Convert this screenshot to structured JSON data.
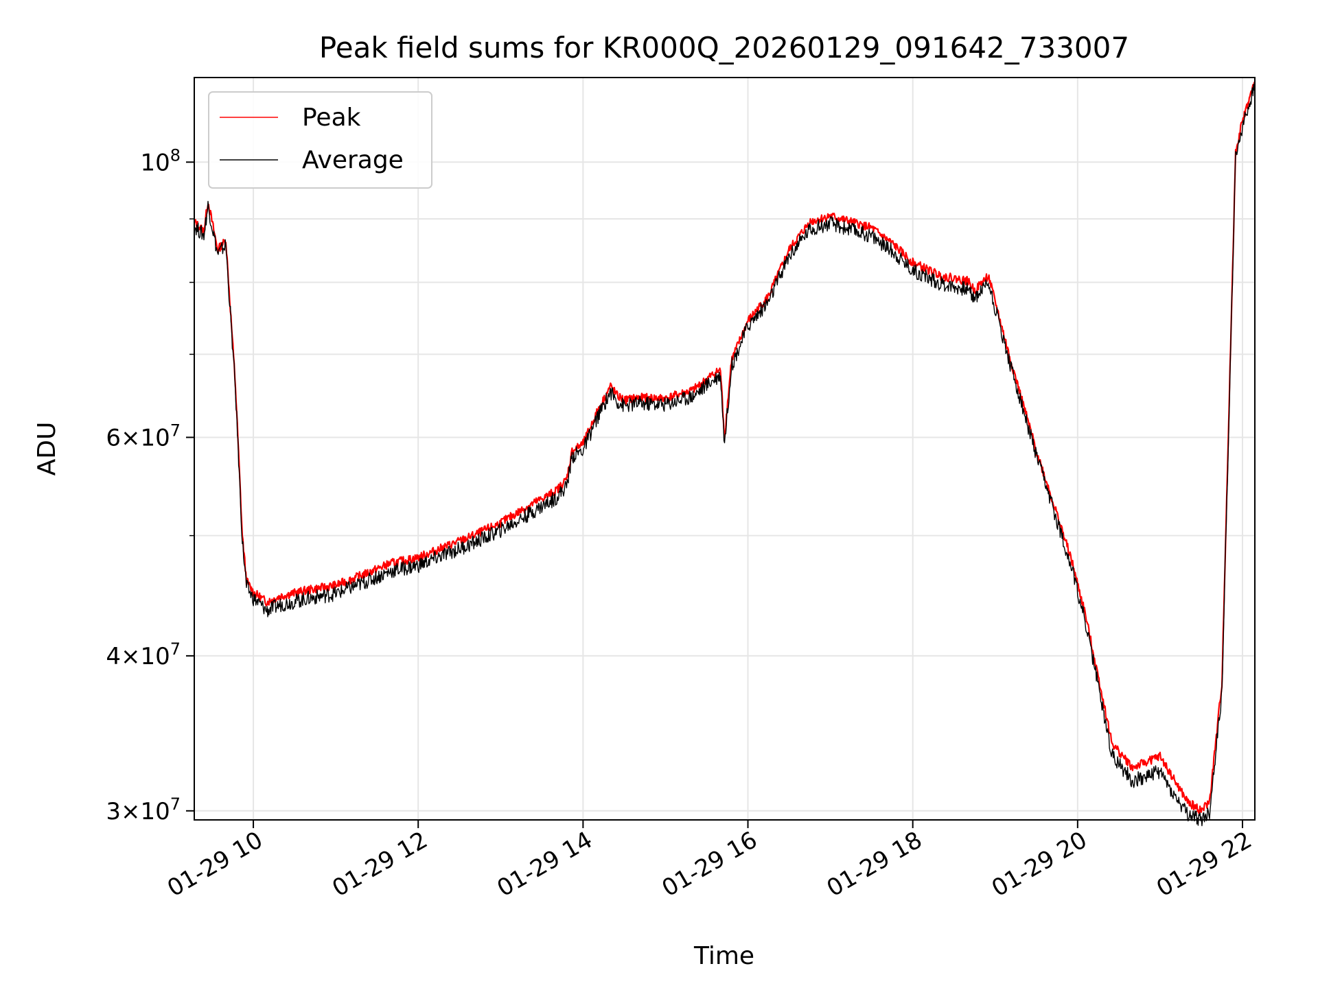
{
  "chart_data": {
    "type": "line",
    "title": "Peak field sums for KR000Q_20260129_091642_733007",
    "xlabel": "Time",
    "ylabel": "ADU",
    "yscale": "log",
    "grid": true,
    "legend_placement": "top-left",
    "xlim": [
      "2026-01-29T09:17",
      "2026-01-29T22:09"
    ],
    "ylim": [
      29500000,
      117000000
    ],
    "x_ticks": [
      {
        "value": "2026-01-29T10:00",
        "label": "01-29 10"
      },
      {
        "value": "2026-01-29T12:00",
        "label": "01-29 12"
      },
      {
        "value": "2026-01-29T14:00",
        "label": "01-29 14"
      },
      {
        "value": "2026-01-29T16:00",
        "label": "01-29 16"
      },
      {
        "value": "2026-01-29T18:00",
        "label": "01-29 18"
      },
      {
        "value": "2026-01-29T20:00",
        "label": "01-29 20"
      },
      {
        "value": "2026-01-29T22:00",
        "label": "01-29 22"
      }
    ],
    "y_ticks": [
      {
        "value": 30000000,
        "mantissa": "3",
        "exponent": "7"
      },
      {
        "value": 40000000,
        "mantissa": "4",
        "exponent": "7"
      },
      {
        "value": 60000000,
        "mantissa": "6",
        "exponent": "7"
      },
      {
        "value": 100000000,
        "mantissa": "",
        "exponent": "8"
      }
    ],
    "y_minor_ticks": [
      50000000,
      70000000,
      80000000,
      90000000
    ],
    "series": [
      {
        "name": "Peak",
        "color": "#ff0000",
        "x": [
          "09:17",
          "09:24",
          "09:27",
          "09:34",
          "09:40",
          "09:47",
          "09:52",
          "09:55",
          "10:00",
          "10:10",
          "10:20",
          "10:40",
          "11:00",
          "11:20",
          "11:40",
          "12:00",
          "12:20",
          "12:40",
          "13:00",
          "13:20",
          "13:40",
          "13:48",
          "13:52",
          "14:00",
          "14:10",
          "14:20",
          "14:25",
          "14:30",
          "14:40",
          "15:00",
          "15:20",
          "15:35",
          "15:40",
          "15:43",
          "15:48",
          "16:00",
          "16:15",
          "16:30",
          "16:45",
          "17:00",
          "17:15",
          "17:30",
          "17:45",
          "18:00",
          "18:20",
          "18:40",
          "18:45",
          "18:55",
          "19:10",
          "19:30",
          "19:45",
          "19:55",
          "20:05",
          "20:15",
          "20:25",
          "20:40",
          "21:00",
          "21:10",
          "21:20",
          "21:30",
          "21:36",
          "21:45",
          "21:50",
          "21:55",
          "22:00",
          "22:09"
        ],
        "y": [
          89500000,
          88000000,
          93000000,
          85000000,
          86500000,
          66000000,
          50000000,
          46000000,
          45000000,
          44200000,
          44700000,
          45200000,
          45600000,
          46500000,
          47500000,
          48000000,
          49000000,
          50000000,
          51200000,
          52800000,
          54300000,
          55500000,
          58500000,
          59300000,
          62800000,
          66000000,
          64800000,
          64300000,
          64600000,
          64500000,
          65500000,
          67500000,
          68000000,
          60000000,
          69200000,
          74500000,
          78000000,
          85000000,
          89500000,
          90500000,
          89500000,
          88500000,
          86000000,
          83000000,
          81000000,
          80200000,
          78800000,
          81000000,
          70000000,
          58500000,
          52000000,
          48000000,
          43500000,
          38500000,
          34000000,
          32500000,
          33200000,
          31800000,
          30500000,
          30000000,
          30500000,
          38000000,
          62000000,
          102000000,
          108000000,
          116000000
        ]
      },
      {
        "name": "Average",
        "color": "#000000",
        "x": [
          "09:17",
          "09:24",
          "09:27",
          "09:34",
          "09:40",
          "09:47",
          "09:52",
          "09:55",
          "10:00",
          "10:10",
          "10:20",
          "10:40",
          "11:00",
          "11:20",
          "11:40",
          "12:00",
          "12:20",
          "12:40",
          "13:00",
          "13:20",
          "13:40",
          "13:48",
          "13:52",
          "14:00",
          "14:10",
          "14:20",
          "14:25",
          "14:30",
          "14:40",
          "15:00",
          "15:20",
          "15:35",
          "15:40",
          "15:43",
          "15:48",
          "16:00",
          "16:15",
          "16:30",
          "16:45",
          "17:00",
          "17:15",
          "17:30",
          "17:45",
          "18:00",
          "18:20",
          "18:40",
          "18:45",
          "18:55",
          "19:10",
          "19:30",
          "19:45",
          "19:55",
          "20:05",
          "20:15",
          "20:25",
          "20:40",
          "21:00",
          "21:10",
          "21:20",
          "21:30",
          "21:36",
          "21:45",
          "21:50",
          "21:55",
          "22:00",
          "22:09"
        ],
        "y": [
          88800000,
          87300000,
          92300000,
          84300000,
          85800000,
          65400000,
          49500000,
          45500000,
          44500000,
          43500000,
          44000000,
          44500000,
          44900000,
          45800000,
          46800000,
          47300000,
          48300000,
          49300000,
          50500000,
          52000000,
          53600000,
          54800000,
          57900000,
          58600000,
          62100000,
          65300000,
          64100000,
          63600000,
          63900000,
          63800000,
          64800000,
          66800000,
          67400000,
          59300000,
          68500000,
          73800000,
          77200000,
          84000000,
          88300000,
          89200000,
          88200000,
          87200000,
          84800000,
          81800000,
          79800000,
          79000000,
          77700000,
          80100000,
          69300000,
          57900000,
          51400000,
          47400000,
          42900000,
          37900000,
          33300000,
          31700000,
          32300000,
          30900000,
          29800000,
          29500000,
          29900000,
          37400000,
          61300000,
          101000000,
          107000000,
          115000000
        ]
      }
    ]
  }
}
